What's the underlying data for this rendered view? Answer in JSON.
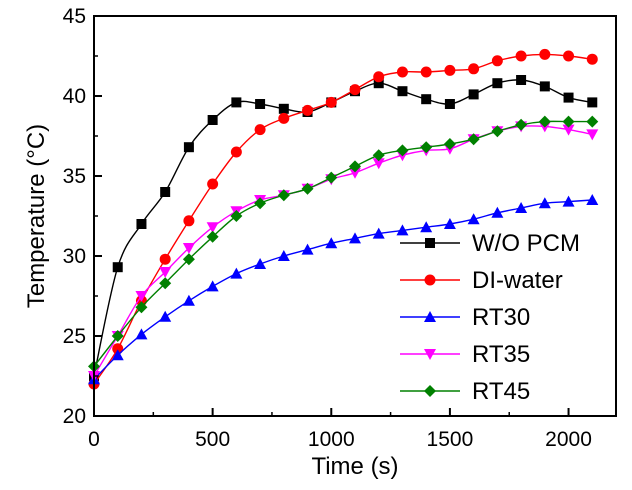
{
  "chart_data": {
    "type": "line",
    "title": "",
    "xlabel": "Time (s)",
    "ylabel": "Temperature (°C)",
    "xlim": [
      0,
      2200
    ],
    "ylim": [
      20,
      45
    ],
    "xticks": [
      0,
      500,
      1000,
      1500,
      2000
    ],
    "yticks": [
      20,
      25,
      30,
      35,
      40,
      45
    ],
    "legend_position": "bottom-right",
    "grid": false,
    "series": [
      {
        "name": "W/O PCM",
        "color": "#000000",
        "marker": "square",
        "x": [
          0,
          100,
          200,
          300,
          400,
          500,
          600,
          700,
          800,
          900,
          1000,
          1100,
          1200,
          1300,
          1400,
          1500,
          1600,
          1700,
          1800,
          1900,
          2000,
          2100
        ],
        "y": [
          22.5,
          29.3,
          32.0,
          34.0,
          36.8,
          38.5,
          39.6,
          39.5,
          39.2,
          39.0,
          39.6,
          40.3,
          40.8,
          40.3,
          39.8,
          39.5,
          40.1,
          40.8,
          41.0,
          40.6,
          39.9,
          39.6
        ]
      },
      {
        "name": "DI-water",
        "color": "#ff0000",
        "marker": "circle",
        "x": [
          0,
          100,
          200,
          300,
          400,
          500,
          600,
          700,
          800,
          900,
          1000,
          1100,
          1200,
          1300,
          1400,
          1500,
          1600,
          1700,
          1800,
          1900,
          2000,
          2100
        ],
        "y": [
          22.0,
          24.2,
          27.2,
          29.8,
          32.2,
          34.5,
          36.5,
          37.9,
          38.6,
          39.1,
          39.6,
          40.4,
          41.2,
          41.5,
          41.5,
          41.6,
          41.7,
          42.2,
          42.5,
          42.6,
          42.5,
          42.3
        ]
      },
      {
        "name": "RT30",
        "color": "#0000ff",
        "marker": "triangle-up",
        "x": [
          0,
          100,
          200,
          300,
          400,
          500,
          600,
          700,
          800,
          900,
          1000,
          1100,
          1200,
          1300,
          1400,
          1500,
          1600,
          1700,
          1800,
          1900,
          2000,
          2100
        ],
        "y": [
          22.3,
          23.8,
          25.1,
          26.2,
          27.2,
          28.1,
          28.9,
          29.5,
          30.0,
          30.4,
          30.8,
          31.1,
          31.4,
          31.6,
          31.8,
          32.0,
          32.3,
          32.7,
          33.0,
          33.3,
          33.4,
          33.5
        ]
      },
      {
        "name": "RT35",
        "color": "#ff00ff",
        "marker": "triangle-down",
        "x": [
          0,
          100,
          200,
          300,
          400,
          500,
          600,
          700,
          800,
          900,
          1000,
          1100,
          1200,
          1300,
          1400,
          1500,
          1600,
          1700,
          1800,
          1900,
          2000,
          2100
        ],
        "y": [
          22.5,
          25.0,
          27.5,
          29.0,
          30.5,
          31.8,
          32.8,
          33.5,
          33.8,
          34.2,
          34.8,
          35.2,
          35.8,
          36.3,
          36.6,
          36.7,
          37.3,
          37.8,
          38.1,
          38.1,
          37.9,
          37.6
        ]
      },
      {
        "name": "RT45",
        "color": "#008000",
        "marker": "diamond",
        "x": [
          0,
          100,
          200,
          300,
          400,
          500,
          600,
          700,
          800,
          900,
          1000,
          1100,
          1200,
          1300,
          1400,
          1500,
          1600,
          1700,
          1800,
          1900,
          2000,
          2100
        ],
        "y": [
          23.1,
          25.0,
          26.8,
          28.3,
          29.8,
          31.2,
          32.5,
          33.3,
          33.8,
          34.2,
          34.9,
          35.6,
          36.3,
          36.6,
          36.8,
          37.0,
          37.3,
          37.8,
          38.2,
          38.4,
          38.4,
          38.4
        ]
      }
    ]
  }
}
